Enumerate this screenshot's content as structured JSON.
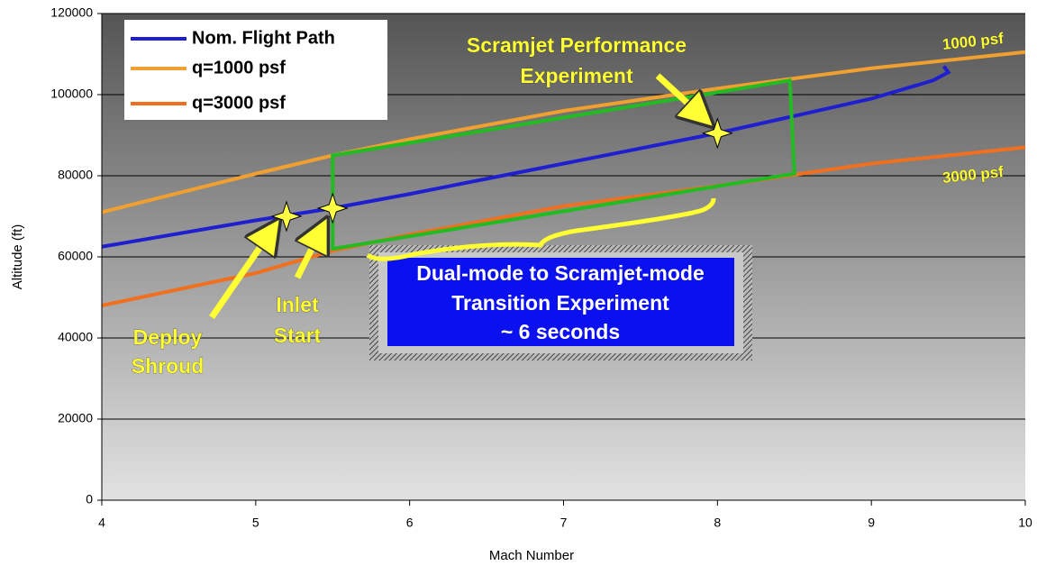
{
  "chart_data": {
    "type": "line",
    "xlabel": "Mach Number",
    "ylabel": "Altitude (ft)",
    "xlim": [
      4,
      10
    ],
    "ylim": [
      0,
      120000
    ],
    "xticks": [
      4,
      5,
      6,
      7,
      8,
      9,
      10
    ],
    "yticks": [
      0,
      20000,
      40000,
      60000,
      80000,
      100000,
      120000
    ],
    "grid": true,
    "legend": "upper left",
    "series": [
      {
        "name": "Nom. Flight Path",
        "color": "#1f1fd0",
        "x": [
          4,
          5,
          5.5,
          6,
          7,
          8,
          9,
          9.4,
          9.5,
          9.47
        ],
        "values": [
          62500,
          69000,
          72000,
          75500,
          83000,
          90500,
          99000,
          103500,
          105500,
          107000
        ]
      },
      {
        "name": "q=1000 psf",
        "color": "#f0a030",
        "x": [
          4,
          5,
          5.5,
          6,
          7,
          8,
          9,
          10
        ],
        "values": [
          71000,
          80500,
          85000,
          89000,
          96000,
          101500,
          106500,
          110500
        ]
      },
      {
        "name": "q=3000 psf",
        "color": "#f07020",
        "x": [
          4,
          5,
          5.5,
          6,
          7,
          8,
          9,
          10
        ],
        "values": [
          48000,
          56000,
          61500,
          65500,
          72500,
          77500,
          83000,
          87000
        ]
      }
    ],
    "region": {
      "color": "#22bb22",
      "x": [
        5.5,
        8.47,
        8.5,
        5.5
      ],
      "values": [
        85000,
        103500,
        80500,
        62000
      ]
    },
    "markers": {
      "color": "#ffff44",
      "x": [
        5.2,
        5.5,
        8
      ],
      "values": [
        70000,
        72000,
        90500
      ]
    },
    "annotations": [
      {
        "lines": [
          "Scramjet Performance",
          "Experiment"
        ]
      },
      {
        "lines": [
          "1000 psf"
        ]
      },
      {
        "lines": [
          "3000 psf"
        ]
      },
      {
        "lines": [
          "Dual-mode to Scramjet-mode",
          "Transition Experiment",
          "~ 6 seconds"
        ]
      },
      {
        "lines": [
          "Inlet",
          "Start"
        ]
      },
      {
        "lines": [
          "Deploy",
          "Shroud"
        ]
      }
    ]
  }
}
